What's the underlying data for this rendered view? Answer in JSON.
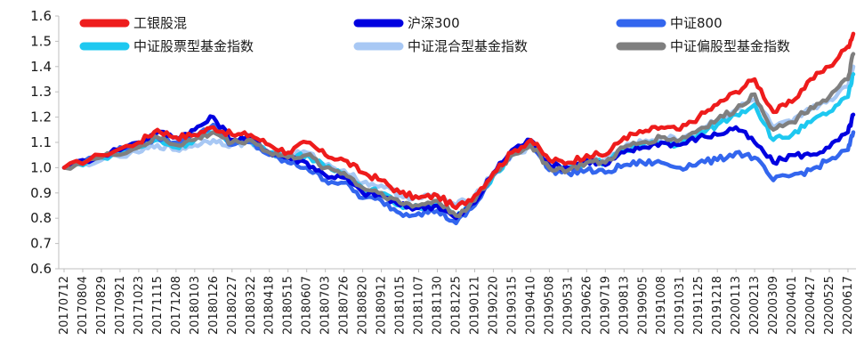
{
  "chart_data": {
    "type": "line",
    "title": "",
    "xlabel": "",
    "ylabel": "",
    "ylim": [
      0.6,
      1.6
    ],
    "yticks": [
      "0.6",
      "0.7",
      "0.8",
      "0.9",
      "1.0",
      "1.1",
      "1.2",
      "1.3",
      "1.4",
      "1.5",
      "1.6"
    ],
    "xtick_labels": [
      "20170712",
      "20170804",
      "20170829",
      "20170921",
      "20171023",
      "20171115",
      "20171208",
      "20180103",
      "20180126",
      "20180227",
      "20180322",
      "20180418",
      "20180515",
      "20180607",
      "20180703",
      "20180726",
      "20180820",
      "20180912",
      "20181015",
      "20181107",
      "20181130",
      "20181225",
      "20190121",
      "20190220",
      "20190315",
      "20190410",
      "20190508",
      "20190531",
      "20190626",
      "20190719",
      "20190813",
      "20190905",
      "20191008",
      "20191031",
      "20191125",
      "20191218",
      "20200113",
      "20200213",
      "20200309",
      "20200401",
      "20200427",
      "20200525",
      "20200617"
    ],
    "x": [
      "20170712",
      "20170829",
      "20171023",
      "20171115",
      "20171208",
      "20180103",
      "20180126",
      "20180227",
      "20180322",
      "20180418",
      "20180515",
      "20180607",
      "20180703",
      "20180726",
      "20180820",
      "20180912",
      "20181015",
      "20181107",
      "20181130",
      "20181225",
      "20190121",
      "20190220",
      "20190315",
      "20190410",
      "20190508",
      "20190531",
      "20190626",
      "20190719",
      "20190813",
      "20190905",
      "20191008",
      "20191031",
      "20191125",
      "20191218",
      "20200113",
      "20200213",
      "20200309",
      "20200401",
      "20200427",
      "20200525",
      "20200617",
      "20200630"
    ],
    "legend_position": "top",
    "series": [
      {
        "name": "工银股混",
        "color": "#ee1c1c",
        "values": [
          1.0,
          1.05,
          1.1,
          1.15,
          1.12,
          1.13,
          1.16,
          1.13,
          1.13,
          1.09,
          1.06,
          1.1,
          1.05,
          1.03,
          0.98,
          0.95,
          0.9,
          0.88,
          0.89,
          0.84,
          0.89,
          0.98,
          1.06,
          1.11,
          1.03,
          1.02,
          1.05,
          1.05,
          1.12,
          1.14,
          1.16,
          1.15,
          1.2,
          1.25,
          1.3,
          1.35,
          1.22,
          1.26,
          1.35,
          1.4,
          1.48,
          1.53
        ]
      },
      {
        "name": "沪深300",
        "color": "#0000e0",
        "values": [
          1.0,
          1.05,
          1.1,
          1.14,
          1.12,
          1.15,
          1.2,
          1.11,
          1.12,
          1.06,
          1.04,
          1.02,
          0.97,
          0.96,
          0.9,
          0.89,
          0.85,
          0.84,
          0.85,
          0.8,
          0.86,
          0.98,
          1.07,
          1.11,
          1.01,
          1.0,
          1.03,
          1.01,
          1.06,
          1.08,
          1.1,
          1.09,
          1.12,
          1.13,
          1.16,
          1.1,
          1.02,
          1.05,
          1.05,
          1.08,
          1.14,
          1.21
        ]
      },
      {
        "name": "中证800",
        "color": "#3366ee",
        "values": [
          1.0,
          1.05,
          1.09,
          1.12,
          1.1,
          1.13,
          1.17,
          1.09,
          1.1,
          1.05,
          1.02,
          1.0,
          0.95,
          0.94,
          0.88,
          0.87,
          0.82,
          0.82,
          0.83,
          0.78,
          0.85,
          0.97,
          1.06,
          1.1,
          0.99,
          0.98,
          0.99,
          0.98,
          1.01,
          1.02,
          1.02,
          1.0,
          1.02,
          1.03,
          1.06,
          1.04,
          0.95,
          0.97,
          0.99,
          1.03,
          1.07,
          1.14
        ]
      },
      {
        "name": "中证股票型基金指数",
        "color": "#1ec8f0",
        "values": [
          1.0,
          1.04,
          1.08,
          1.11,
          1.08,
          1.11,
          1.14,
          1.1,
          1.11,
          1.06,
          1.04,
          1.05,
          1.0,
          0.98,
          0.92,
          0.9,
          0.85,
          0.84,
          0.86,
          0.8,
          0.86,
          0.97,
          1.05,
          1.09,
          1.0,
          0.99,
          1.02,
          1.02,
          1.07,
          1.09,
          1.1,
          1.09,
          1.13,
          1.17,
          1.21,
          1.25,
          1.11,
          1.13,
          1.18,
          1.22,
          1.28,
          1.37
        ]
      },
      {
        "name": "中证混合型基金指数",
        "color": "#a8c8f4",
        "values": [
          1.0,
          1.03,
          1.06,
          1.09,
          1.07,
          1.09,
          1.11,
          1.09,
          1.1,
          1.06,
          1.05,
          1.06,
          1.01,
          0.99,
          0.94,
          0.93,
          0.89,
          0.88,
          0.89,
          0.85,
          0.89,
          0.98,
          1.05,
          1.08,
          1.01,
          1.0,
          1.03,
          1.03,
          1.08,
          1.1,
          1.12,
          1.11,
          1.15,
          1.19,
          1.23,
          1.27,
          1.16,
          1.18,
          1.23,
          1.27,
          1.32,
          1.4
        ]
      },
      {
        "name": "中证偏股型基金指数",
        "color": "#7f7f7f",
        "values": [
          1.0,
          1.04,
          1.08,
          1.12,
          1.09,
          1.11,
          1.14,
          1.1,
          1.11,
          1.06,
          1.04,
          1.05,
          1.0,
          0.98,
          0.92,
          0.9,
          0.86,
          0.85,
          0.87,
          0.81,
          0.87,
          0.97,
          1.05,
          1.09,
          1.0,
          0.99,
          1.02,
          1.02,
          1.08,
          1.1,
          1.12,
          1.11,
          1.15,
          1.19,
          1.23,
          1.29,
          1.15,
          1.18,
          1.24,
          1.28,
          1.35,
          1.45
        ]
      }
    ]
  }
}
